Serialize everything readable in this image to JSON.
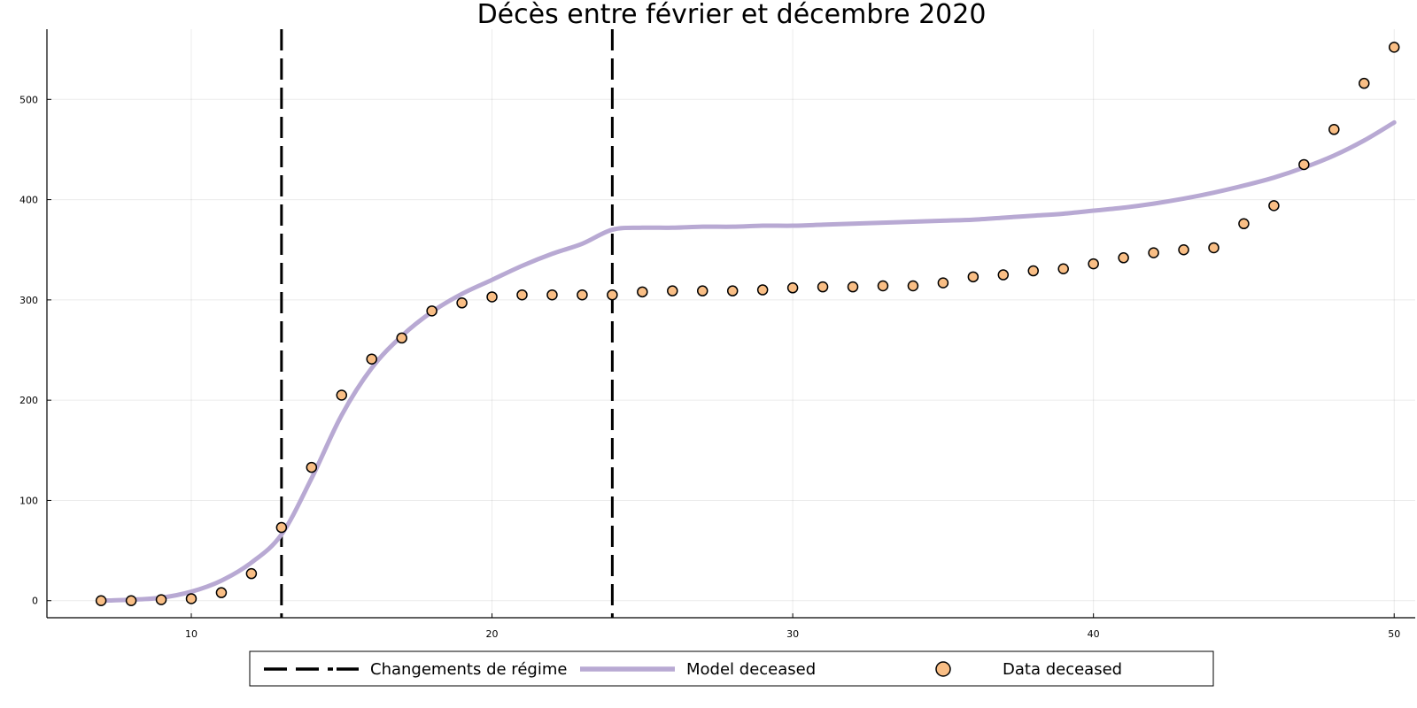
{
  "chart_data": {
    "type": "scatter",
    "title": "Décès entre février et décembre 2020",
    "xlabel": "",
    "ylabel": "",
    "xlim": [
      5.2,
      50.7
    ],
    "ylim": [
      -17,
      570
    ],
    "grid": true,
    "legend_placement": "bottom-outside",
    "x_ticks": [
      10,
      20,
      30,
      40,
      50
    ],
    "x_tick_labels": [
      "10",
      "20",
      "30",
      "40",
      "50"
    ],
    "y_ticks": [
      0,
      100,
      200,
      300,
      400,
      500
    ],
    "y_tick_labels": [
      "0",
      "100",
      "200",
      "300",
      "400",
      "500"
    ],
    "vlines": {
      "name": "Changements de régime",
      "x": [
        13,
        24
      ],
      "color": "#000000"
    },
    "series": [
      {
        "name": "Model deceased",
        "kind": "line",
        "color": "#b8a9d3",
        "x": [
          7,
          8,
          9,
          10,
          11,
          12,
          13,
          14,
          15,
          16,
          17,
          18,
          19,
          20,
          21,
          22,
          23,
          24,
          25,
          26,
          27,
          28,
          29,
          30,
          31,
          32,
          33,
          34,
          35,
          36,
          37,
          38,
          39,
          40,
          41,
          42,
          43,
          44,
          45,
          46,
          47,
          48,
          49,
          50
        ],
        "y": [
          0,
          1,
          3,
          9,
          20,
          38,
          66,
          122,
          185,
          232,
          264,
          288,
          306,
          320,
          334,
          346,
          356,
          370,
          372,
          372,
          373,
          373,
          374,
          374,
          375,
          376,
          377,
          378,
          379,
          380,
          382,
          384,
          386,
          389,
          392,
          396,
          401,
          407,
          414,
          422,
          432,
          444,
          459,
          477
        ]
      },
      {
        "name": "Data deceased",
        "kind": "scatter",
        "color": "#f9be85",
        "edge_color": "#000000",
        "x": [
          7,
          8,
          9,
          10,
          11,
          12,
          13,
          14,
          15,
          16,
          17,
          18,
          19,
          20,
          21,
          22,
          23,
          24,
          25,
          26,
          27,
          28,
          29,
          30,
          31,
          32,
          33,
          34,
          35,
          36,
          37,
          38,
          39,
          40,
          41,
          42,
          43,
          44,
          45,
          46,
          47,
          48,
          49,
          50
        ],
        "y": [
          0,
          0,
          1,
          2,
          8,
          27,
          73,
          133,
          205,
          241,
          262,
          289,
          297,
          303,
          305,
          305,
          305,
          305,
          308,
          309,
          309,
          309,
          310,
          312,
          313,
          313,
          314,
          314,
          317,
          323,
          325,
          329,
          331,
          336,
          342,
          347,
          350,
          352,
          376,
          394,
          435,
          470,
          516,
          552
        ]
      }
    ]
  }
}
